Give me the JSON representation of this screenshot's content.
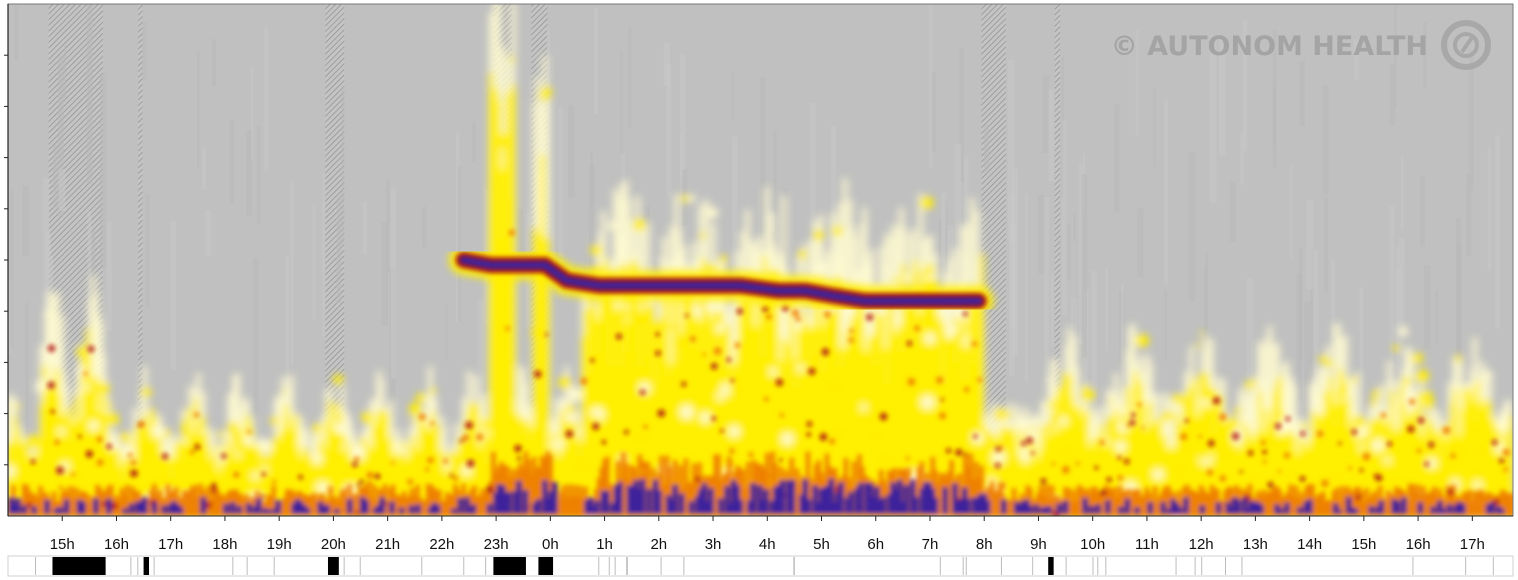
{
  "watermark": "© AUTONOM HEALTH",
  "colors": {
    "background": "#c0c0c0",
    "low": "#fffbd0",
    "mid": "#ffee00",
    "high": "#ee7d00",
    "peak": "#b01010",
    "max": "#3a20a0",
    "hatch": "#9a9a9a",
    "activity_bar": "#000000"
  },
  "chart_data": {
    "type": "heatmap",
    "title": "",
    "xlabel": "",
    "ylabel": "",
    "x_axis_unit": "hour of day",
    "x_ticks": [
      "15h",
      "16h",
      "17h",
      "18h",
      "19h",
      "20h",
      "21h",
      "22h",
      "23h",
      "0h",
      "1h",
      "2h",
      "3h",
      "4h",
      "5h",
      "6h",
      "7h",
      "8h",
      "9h",
      "10h",
      "11h",
      "12h",
      "13h",
      "14h",
      "15h",
      "16h",
      "17h"
    ],
    "x_range_hours": [
      14.0,
      41.75
    ],
    "hatched_intervals_hours": [
      [
        14.75,
        15.75
      ],
      [
        16.4,
        16.48
      ],
      [
        19.85,
        20.2
      ],
      [
        22.95,
        23.3
      ],
      [
        23.65,
        23.95
      ],
      [
        31.95,
        32.4
      ],
      [
        33.3,
        33.4
      ]
    ],
    "activity_bar_segments_hours": [
      [
        14.82,
        15.8
      ],
      [
        16.5,
        16.6
      ],
      [
        19.9,
        20.1
      ],
      [
        22.95,
        23.55
      ],
      [
        23.78,
        24.05
      ],
      [
        33.18,
        33.28
      ]
    ],
    "dominant_band": {
      "note": "concentrated high-intensity band visible at night",
      "points_hour": [
        22.4,
        22.9,
        23.9,
        24.3,
        24.9,
        25.5,
        26.2,
        26.8,
        27.5,
        28.2,
        28.7,
        29.2,
        29.8,
        30.3,
        30.8,
        31.3,
        31.9
      ],
      "points_level": [
        0.5,
        0.49,
        0.49,
        0.46,
        0.45,
        0.45,
        0.45,
        0.45,
        0.45,
        0.44,
        0.44,
        0.43,
        0.42,
        0.42,
        0.42,
        0.42,
        0.42
      ]
    }
  }
}
